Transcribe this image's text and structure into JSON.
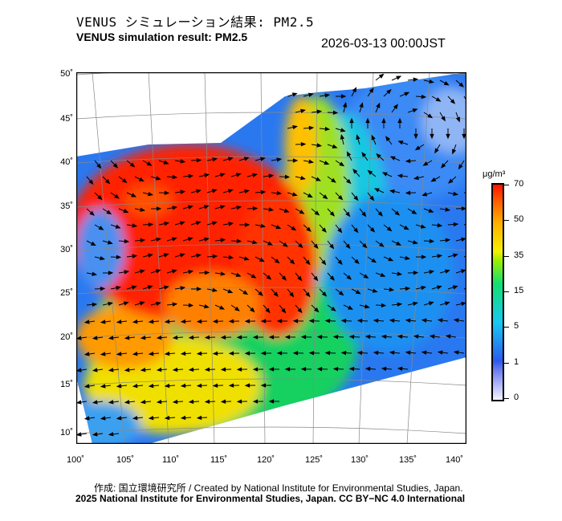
{
  "header": {
    "title_jp": "VENUS シミュレーション結果: PM2.5",
    "title_en": "VENUS simulation result: PM2.5",
    "timestamp": "2026-03-13 00:00JST"
  },
  "map": {
    "lat_labels": [
      "50˚",
      "45˚",
      "40˚",
      "35˚",
      "30˚",
      "25˚",
      "20˚",
      "15˚",
      "10˚"
    ],
    "lon_labels": [
      "100˚",
      "105˚",
      "110˚",
      "115˚",
      "120˚",
      "125˚",
      "130˚",
      "135˚",
      "140˚"
    ]
  },
  "colorbar": {
    "unit": "μg/m³",
    "ticks": [
      "70",
      "50",
      "35",
      "15",
      "5",
      "1",
      "0"
    ],
    "colors": {
      "low": "#f4f4ff",
      "mid": "#12e070",
      "high": "#ff1000"
    }
  },
  "footer": {
    "credit": "作成: 国立環境研究所 / Created by National Institute for Environmental Studies, Japan.",
    "license": "2025 National Institute for Environmental Studies, Japan. CC BY−NC 4.0 International"
  }
}
